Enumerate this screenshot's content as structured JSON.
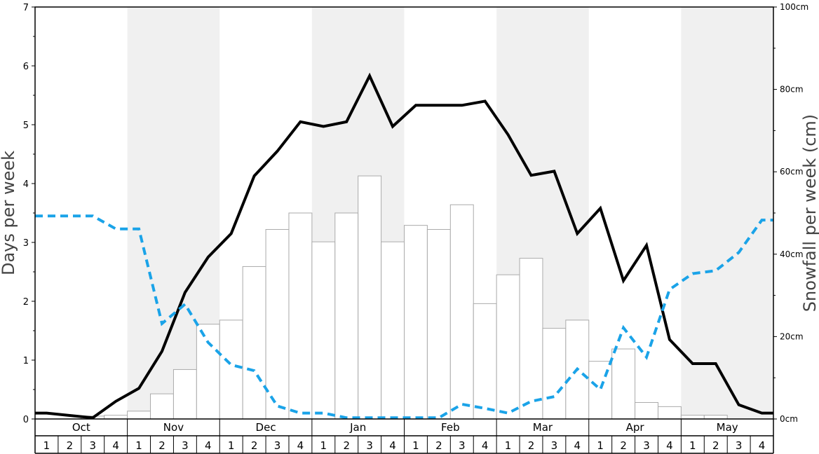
{
  "chart_data": {
    "type": "bar",
    "title": "",
    "ylabel_left": "Days per week",
    "ylabel_right": "Snowfall per week (cm)",
    "ylim_left": [
      0,
      7
    ],
    "ylim_right": [
      0,
      100
    ],
    "left_ticks": [
      "0",
      "1",
      "2",
      "3",
      "4",
      "5",
      "6",
      "7"
    ],
    "right_ticks": [
      "0cm",
      "20cm",
      "40cm",
      "60cm",
      "80cm",
      "100cm"
    ],
    "months": [
      "Oct",
      "Nov",
      "Dec",
      "Jan",
      "Feb",
      "Mar",
      "Apr",
      "May"
    ],
    "weeks": [
      "1",
      "2",
      "3",
      "4"
    ],
    "grid": false,
    "alternating_month_shading": true,
    "colors": {
      "bar_fill": "#ffffff",
      "bar_stroke": "#aaaaaa",
      "shade": "#f0f0f0",
      "solid_line": "#000000",
      "dashed_line": "#1aa3e8"
    },
    "series": [
      {
        "type": "bar",
        "axis": "right",
        "values": [
          0,
          0,
          0.7,
          0.9,
          1.9,
          6.1,
          12.0,
          23.0,
          24.0,
          37.0,
          46.0,
          50.0,
          43.0,
          50.0,
          59.0,
          43.0,
          47.0,
          46.0,
          52.0,
          28.0,
          35.0,
          39.0,
          22.0,
          24.0,
          14.0,
          17.0,
          4.0,
          3.0,
          0.9,
          0.9,
          0,
          0
        ]
      },
      {
        "type": "line",
        "style": "solid",
        "axis": "left",
        "values": [
          0.1,
          0.06,
          0.02,
          0.3,
          0.52,
          1.15,
          2.15,
          2.75,
          3.15,
          4.13,
          4.55,
          5.05,
          4.97,
          5.05,
          5.83,
          4.97,
          5.33,
          5.33,
          5.33,
          5.4,
          4.83,
          4.14,
          4.21,
          3.15,
          3.58,
          2.35,
          2.95,
          1.35,
          0.94,
          0.94,
          0.24,
          0.1
        ]
      },
      {
        "type": "line",
        "style": "dashed",
        "axis": "left",
        "values": [
          3.45,
          3.45,
          3.45,
          3.23,
          3.23,
          1.62,
          1.95,
          1.3,
          0.92,
          0.82,
          0.22,
          0.1,
          0.1,
          0.02,
          0.02,
          0.02,
          0.02,
          0.02,
          0.25,
          0.18,
          0.1,
          0.3,
          0.38,
          0.85,
          0.5,
          1.55,
          1.05,
          2.2,
          2.47,
          2.52,
          2.83,
          3.38
        ]
      }
    ]
  }
}
